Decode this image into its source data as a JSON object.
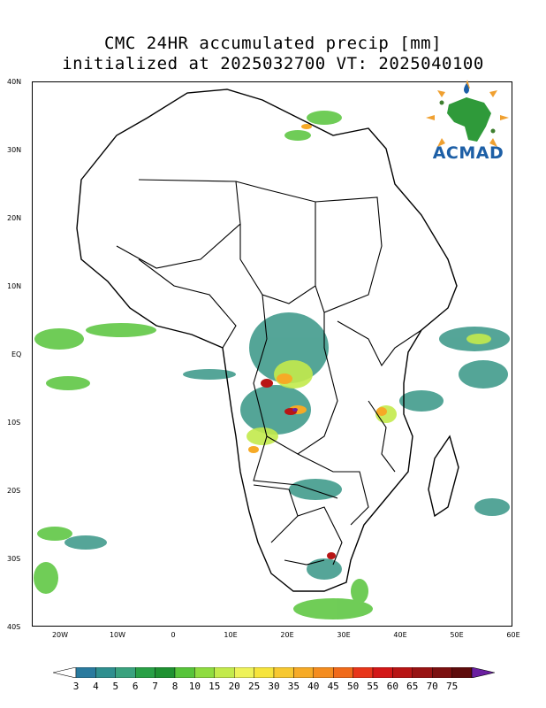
{
  "title_line1": "CMC 24HR accumulated precip [mm]",
  "title_line2": "initialized at 2025032700 VT: 2025040100",
  "logo_text": "ACMAD",
  "lat_labels": [
    "40N",
    "30N",
    "20N",
    "10N",
    "EQ",
    "10S",
    "20S",
    "30S",
    "40S"
  ],
  "lon_labels": [
    "20W",
    "10W",
    "0",
    "10E",
    "20E",
    "30E",
    "40E",
    "50E",
    "60E"
  ],
  "colorbar": {
    "labels": [
      "3",
      "4",
      "5",
      "6",
      "7",
      "8",
      "10",
      "15",
      "20",
      "25",
      "30",
      "35",
      "40",
      "45",
      "50",
      "55",
      "60",
      "65",
      "70",
      "75"
    ],
    "colors": [
      "#2a7a9e",
      "#2f8f8f",
      "#3aa27e",
      "#29a046",
      "#1f9131",
      "#57c43a",
      "#8fdc40",
      "#c3ea4c",
      "#eef25a",
      "#f6e43c",
      "#f7c830",
      "#f6aa26",
      "#f48c1f",
      "#f06a1a",
      "#e8351a",
      "#d31717",
      "#b81515",
      "#981313",
      "#7b1010",
      "#5e0c0c",
      "#6a1fa0"
    ]
  }
}
